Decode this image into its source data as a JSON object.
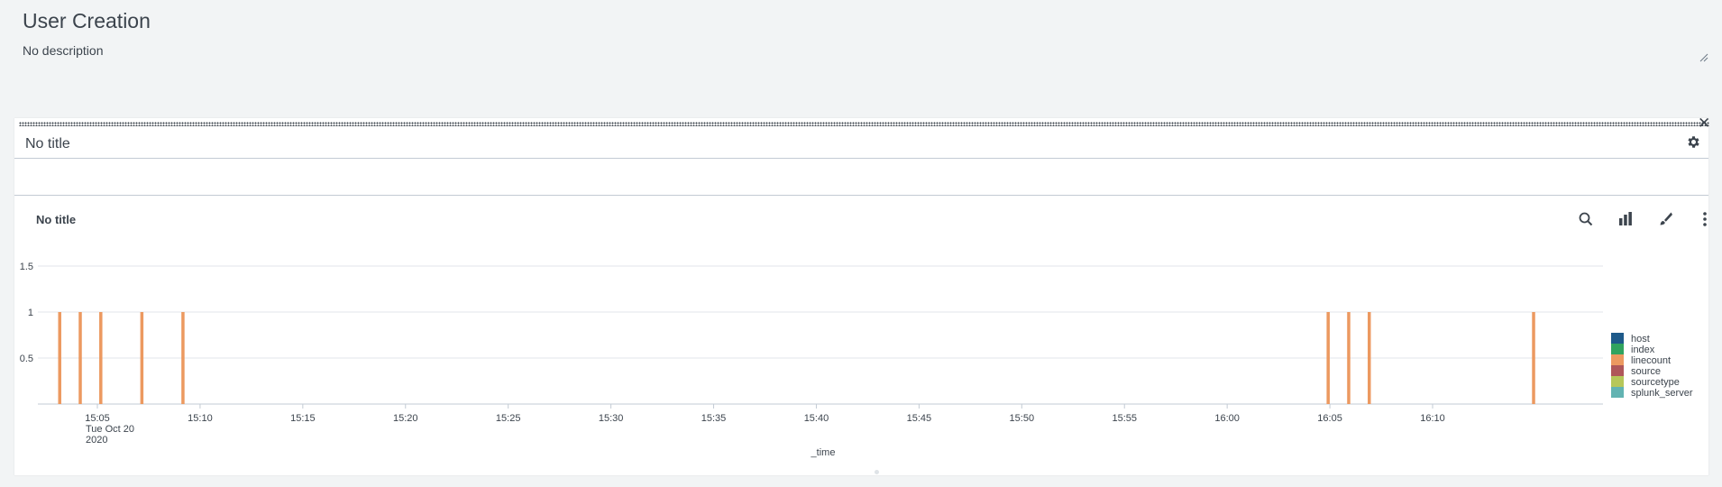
{
  "dashboard": {
    "title": "User Creation",
    "description": "No description"
  },
  "panel": {
    "title": "No title",
    "viz_title": "No title",
    "close_glyph": "✕",
    "icons": [
      "close-icon",
      "gear-icon",
      "search-icon",
      "bar-chart-icon",
      "paintbrush-icon",
      "more-vertical-icon"
    ]
  },
  "colors": {
    "host": "#1e5a8a",
    "index": "#31a35f",
    "linecount": "#ec9960",
    "source": "#af575a",
    "sourcetype": "#b6c75a",
    "splunk_server": "#62b3b2"
  },
  "chart_data": {
    "type": "bar",
    "title": "No title",
    "xlabel": "_time",
    "ylabel": "",
    "ylim": [
      0,
      1.5
    ],
    "y_ticks": [
      "0.5",
      "1",
      "1.5"
    ],
    "grid": true,
    "legend_position": "right",
    "legend": [
      "host",
      "index",
      "linecount",
      "source",
      "sourcetype",
      "splunk_server"
    ],
    "x_ticks": [
      {
        "label": "15:05",
        "date": "Tue Oct 20",
        "year": "2020",
        "time": "2020-10-20 15:05"
      },
      {
        "label": "15:10",
        "time": "2020-10-20 15:10"
      },
      {
        "label": "15:15",
        "time": "2020-10-20 15:15"
      },
      {
        "label": "15:20",
        "time": "2020-10-20 15:20"
      },
      {
        "label": "15:25",
        "time": "2020-10-20 15:25"
      },
      {
        "label": "15:30",
        "time": "2020-10-20 15:30"
      },
      {
        "label": "15:35",
        "time": "2020-10-20 15:35"
      },
      {
        "label": "15:40",
        "time": "2020-10-20 15:40"
      },
      {
        "label": "15:45",
        "time": "2020-10-20 15:45"
      },
      {
        "label": "15:50",
        "time": "2020-10-20 15:50"
      },
      {
        "label": "15:55",
        "time": "2020-10-20 15:55"
      },
      {
        "label": "16:00",
        "time": "2020-10-20 16:00"
      },
      {
        "label": "16:05",
        "time": "2020-10-20 16:05"
      },
      {
        "label": "16:10",
        "time": "2020-10-20 16:10"
      }
    ],
    "series": [
      {
        "name": "linecount",
        "points": [
          {
            "time": "2020-10-20 15:03:10",
            "value": 1
          },
          {
            "time": "2020-10-20 15:04:10",
            "value": 1
          },
          {
            "time": "2020-10-20 15:05:10",
            "value": 1
          },
          {
            "time": "2020-10-20 15:07:10",
            "value": 1
          },
          {
            "time": "2020-10-20 15:09:10",
            "value": 1
          },
          {
            "time": "2020-10-20 16:04:55",
            "value": 1
          },
          {
            "time": "2020-10-20 16:05:55",
            "value": 1
          },
          {
            "time": "2020-10-20 16:06:55",
            "value": 1
          },
          {
            "time": "2020-10-20 16:14:55",
            "value": 1
          }
        ]
      }
    ]
  }
}
